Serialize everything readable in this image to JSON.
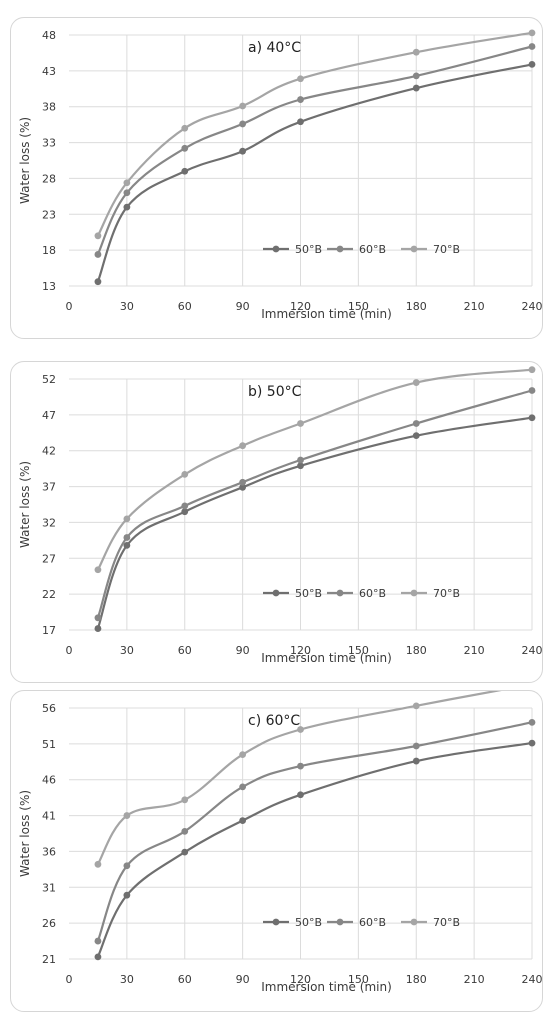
{
  "colors": {
    "series_50": "#6f6f6f",
    "series_60": "#878787",
    "series_70": "#a5a5a5",
    "grid": "#dcdcdc",
    "axis_text": "#3a3a3a"
  },
  "chart_data": [
    {
      "type": "line",
      "title": "a) 40°C",
      "xlabel": "Immersion time (min)",
      "ylabel": "Water loss (%)",
      "xlim": [
        0,
        240
      ],
      "ylim": [
        13,
        48
      ],
      "xticks": [
        0,
        30,
        60,
        90,
        120,
        150,
        180,
        210,
        240
      ],
      "yticks": [
        13,
        18,
        23,
        28,
        33,
        38,
        43,
        48
      ],
      "x": [
        15,
        30,
        60,
        90,
        120,
        180,
        240
      ],
      "grid": true,
      "legend_position": "bottom-right",
      "series": [
        {
          "name": "50°B",
          "values": [
            13.6,
            24.0,
            29.0,
            31.8,
            35.9,
            40.6,
            43.9
          ]
        },
        {
          "name": "60°B",
          "values": [
            17.4,
            26.0,
            32.2,
            35.6,
            39.0,
            42.3,
            46.4
          ]
        },
        {
          "name": "70°B",
          "values": [
            20.0,
            27.4,
            35.0,
            38.1,
            41.9,
            45.6,
            48.3
          ]
        }
      ]
    },
    {
      "type": "line",
      "title": "b) 50°C",
      "xlabel": "Immersion time (min)",
      "ylabel": "Water loss (%)",
      "xlim": [
        0,
        240
      ],
      "ylim": [
        17,
        52
      ],
      "xticks": [
        0,
        30,
        60,
        90,
        120,
        150,
        180,
        210,
        240
      ],
      "yticks": [
        17,
        22,
        27,
        32,
        37,
        42,
        47,
        52
      ],
      "x": [
        15,
        30,
        60,
        90,
        120,
        180,
        240
      ],
      "grid": true,
      "legend_position": "bottom-right",
      "series": [
        {
          "name": "50°B",
          "values": [
            17.2,
            28.8,
            33.5,
            36.9,
            39.9,
            44.1,
            46.6
          ]
        },
        {
          "name": "60°B",
          "values": [
            18.7,
            29.9,
            34.3,
            37.6,
            40.7,
            45.8,
            50.4
          ]
        },
        {
          "name": "70°B",
          "values": [
            25.4,
            32.5,
            38.7,
            42.7,
            45.8,
            51.5,
            53.3
          ]
        }
      ]
    },
    {
      "type": "line",
      "title": "c) 60°C",
      "xlabel": "Immersion time (min)",
      "ylabel": "Water loss (%)",
      "xlim": [
        0,
        240
      ],
      "ylim": [
        21,
        56
      ],
      "xticks": [
        0,
        30,
        60,
        90,
        120,
        150,
        180,
        210,
        240
      ],
      "yticks": [
        21,
        26,
        31,
        36,
        41,
        46,
        51,
        56
      ],
      "x": [
        15,
        30,
        60,
        90,
        120,
        180,
        240
      ],
      "grid": true,
      "legend_position": "bottom-right",
      "series": [
        {
          "name": "50°B",
          "values": [
            21.3,
            29.9,
            35.9,
            40.3,
            43.9,
            48.6,
            51.1
          ]
        },
        {
          "name": "60°B",
          "values": [
            23.5,
            34.0,
            38.8,
            45.0,
            47.9,
            50.7,
            54.0
          ]
        },
        {
          "name": "70°B",
          "values": [
            34.2,
            41.0,
            43.2,
            49.5,
            53.0,
            56.3,
            59.3
          ]
        }
      ]
    }
  ]
}
